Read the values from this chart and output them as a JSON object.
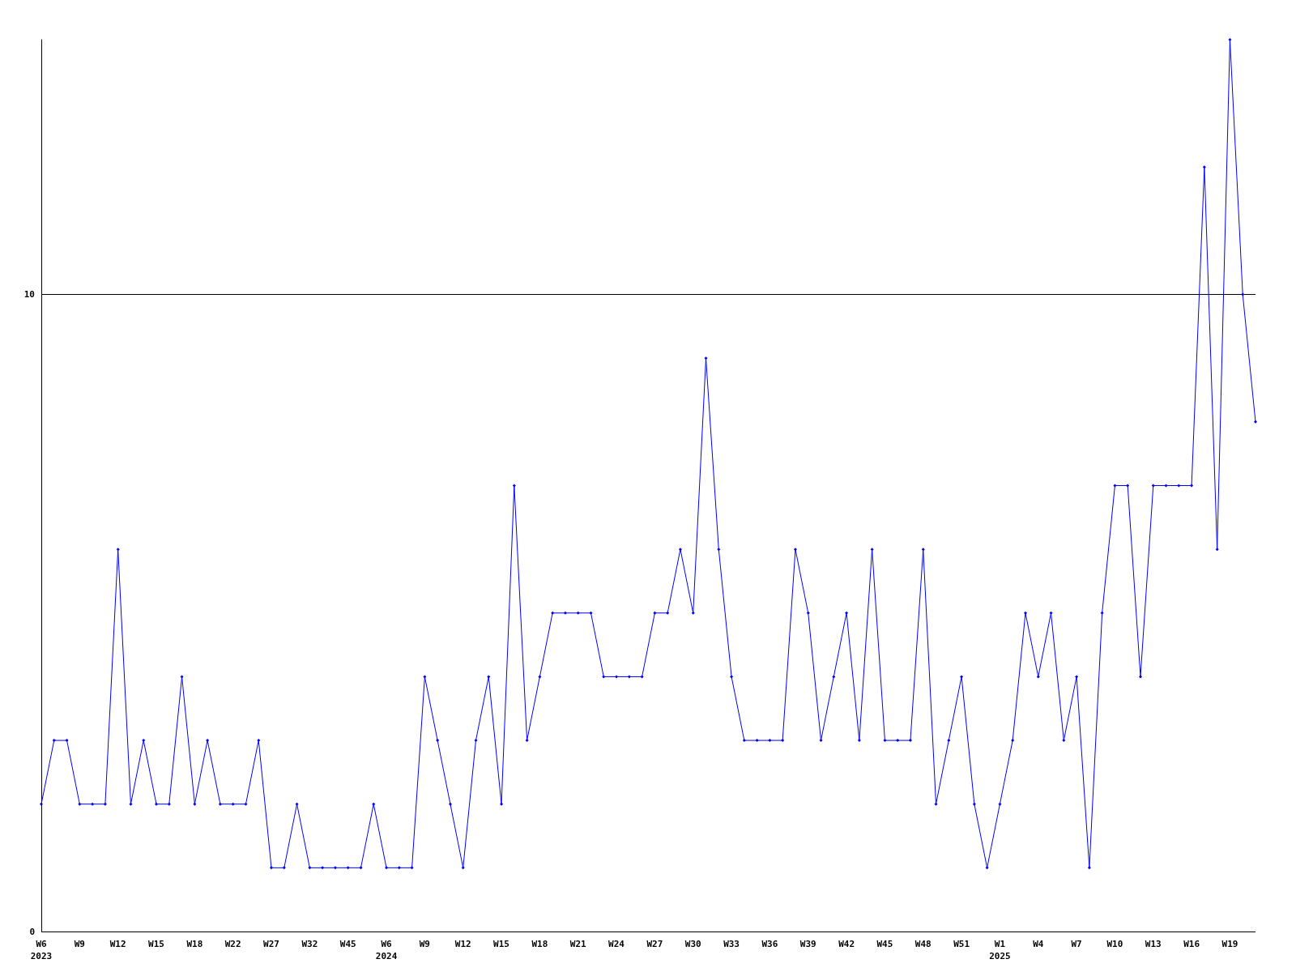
{
  "chart_data": {
    "type": "line",
    "categories": [
      "W6\n2023",
      null,
      null,
      "W9",
      null,
      null,
      "W12",
      null,
      null,
      "W15",
      null,
      null,
      "W18",
      null,
      null,
      "W22",
      null,
      null,
      "W27",
      null,
      null,
      "W32",
      null,
      null,
      "W45",
      null,
      null,
      "W6\n2024",
      null,
      null,
      "W9",
      null,
      null,
      "W12",
      null,
      null,
      "W15",
      null,
      null,
      "W18",
      null,
      null,
      "W21",
      null,
      null,
      "W24",
      null,
      null,
      "W27",
      null,
      null,
      "W30",
      null,
      null,
      "W33",
      null,
      null,
      "W36",
      null,
      null,
      "W39",
      null,
      null,
      "W42",
      null,
      null,
      "W45",
      null,
      null,
      "W48",
      null,
      null,
      "W51",
      null,
      null,
      "W1\n2025",
      null,
      null,
      "W4",
      null,
      null,
      "W7",
      null,
      null,
      "W10",
      null,
      null,
      "W13",
      null,
      null,
      "W16",
      null,
      null,
      "W19",
      null,
      null
    ],
    "series": [
      {
        "color": "#0000ff",
        "values": [
          2,
          3,
          3,
          2,
          2,
          2,
          6,
          2,
          3,
          2,
          2,
          4,
          2,
          3,
          2,
          2,
          2,
          3,
          1,
          1,
          2,
          1,
          1,
          1,
          1,
          1,
          2,
          1,
          1,
          1,
          4,
          3,
          2,
          1,
          3,
          4,
          2,
          7,
          3,
          4,
          5,
          5,
          5,
          5,
          4,
          4,
          4,
          4,
          5,
          5,
          6,
          5,
          9,
          6,
          4,
          3,
          3,
          3,
          3,
          6,
          5,
          3,
          4,
          5,
          3,
          6,
          3,
          3,
          3,
          6,
          2,
          3,
          4,
          2,
          1,
          2,
          3,
          5,
          4,
          5,
          3,
          4,
          1,
          5,
          7,
          7,
          4,
          7,
          7,
          7,
          7,
          12,
          6,
          14,
          10,
          8
        ]
      }
    ],
    "ylim": [
      0,
      14
    ],
    "yticks": [
      0,
      10
    ],
    "grid": "y",
    "marker": "diamond",
    "line_style": "solid"
  }
}
